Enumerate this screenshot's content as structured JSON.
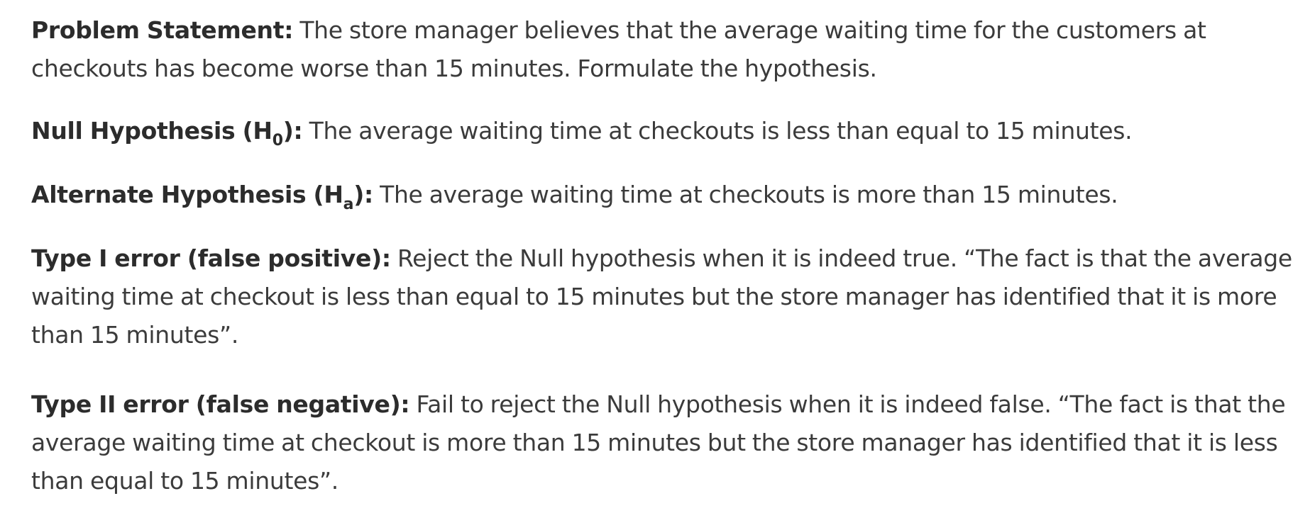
{
  "problem": {
    "label": "Problem Statement:",
    "text": " The store manager believes that the average waiting time for the customers at checkouts has become worse than 15 minutes. Formulate the hypothesis."
  },
  "null_hypothesis": {
    "label_pre": "Null Hypothesis (H",
    "label_sub": "0",
    "label_post": "):",
    "text": " The average waiting time at checkouts is less than equal to 15 minutes."
  },
  "alternate_hypothesis": {
    "label_pre": "Alternate Hypothesis (H",
    "label_sub": "a",
    "label_post": "):",
    "text": " The average waiting time at checkouts is more than 15 minutes."
  },
  "type1_error": {
    "label": "Type I error (false positive):",
    "text": " Reject the Null hypothesis when it is indeed true. “The fact is that the average waiting time at checkout is less than equal to 15 minutes but the store manager has identified that it is more than 15 minutes”."
  },
  "type2_error": {
    "label": "Type II error (false negative):",
    "text": " Fail to reject the Null hypothesis when it is indeed false. “The fact is that the average waiting time at checkout is more than 15 minutes but the store manager has identified that it is less than equal to 15 minutes”."
  }
}
